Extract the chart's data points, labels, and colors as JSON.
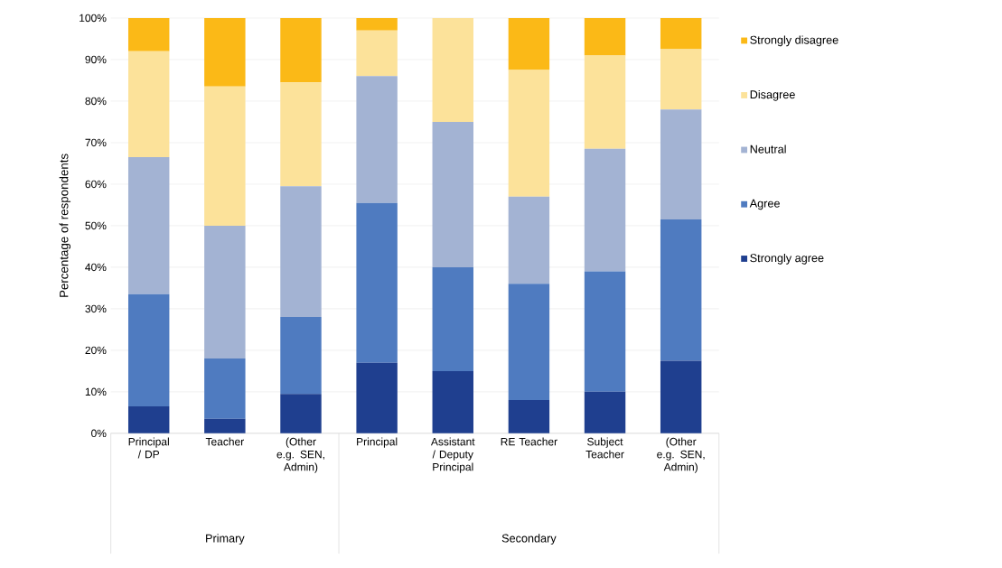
{
  "chart_data": {
    "type": "bar",
    "stacked": true,
    "ylabel": "Percentage of respondents",
    "categories": [
      "Principal / DP",
      "Teacher",
      "(Other e.g. SEN, Admin)",
      "Principal",
      "Assistant / Deputy Principal",
      "RE Teacher",
      "Subject Teacher",
      "(Other e.g. SEN, Admin)"
    ],
    "series": [
      {
        "name": "Strongly agree",
        "color": "#1f3f8f",
        "values": [
          6.5,
          3.5,
          9.5,
          17,
          15,
          8,
          10,
          17.5
        ]
      },
      {
        "name": "Agree",
        "color": "#4f7bc0",
        "values": [
          27,
          14.5,
          18.5,
          38.5,
          25,
          28,
          29,
          34
        ]
      },
      {
        "name": "Neutral",
        "color": "#a3b3d3",
        "values": [
          33,
          32,
          31.5,
          30.5,
          35,
          21,
          29.5,
          26.5
        ]
      },
      {
        "name": "Disagree",
        "color": "#fce29a",
        "values": [
          25.5,
          33.5,
          25,
          11,
          25,
          30.5,
          22.5,
          14.5
        ]
      },
      {
        "name": "Strongly disagree",
        "color": "#fbb917",
        "values": [
          8,
          16.5,
          15.5,
          3,
          0,
          12.5,
          9,
          7.5
        ]
      }
    ],
    "ylim": [
      0,
      100
    ],
    "yticks": [
      {
        "value": 0,
        "label": "0%"
      },
      {
        "value": 10,
        "label": "10%"
      },
      {
        "value": 20,
        "label": "20%"
      },
      {
        "value": 30,
        "label": "30%"
      },
      {
        "value": 40,
        "label": "40%"
      },
      {
        "value": 50,
        "label": "50%"
      },
      {
        "value": 60,
        "label": "60%"
      },
      {
        "value": 70,
        "label": "70%"
      },
      {
        "value": 80,
        "label": "80%"
      },
      {
        "value": 90,
        "label": "90%"
      },
      {
        "value": 100,
        "label": "100%"
      }
    ],
    "grid": "y",
    "legend": "right",
    "annotations": [
      "Primary",
      "Secondary"
    ]
  }
}
